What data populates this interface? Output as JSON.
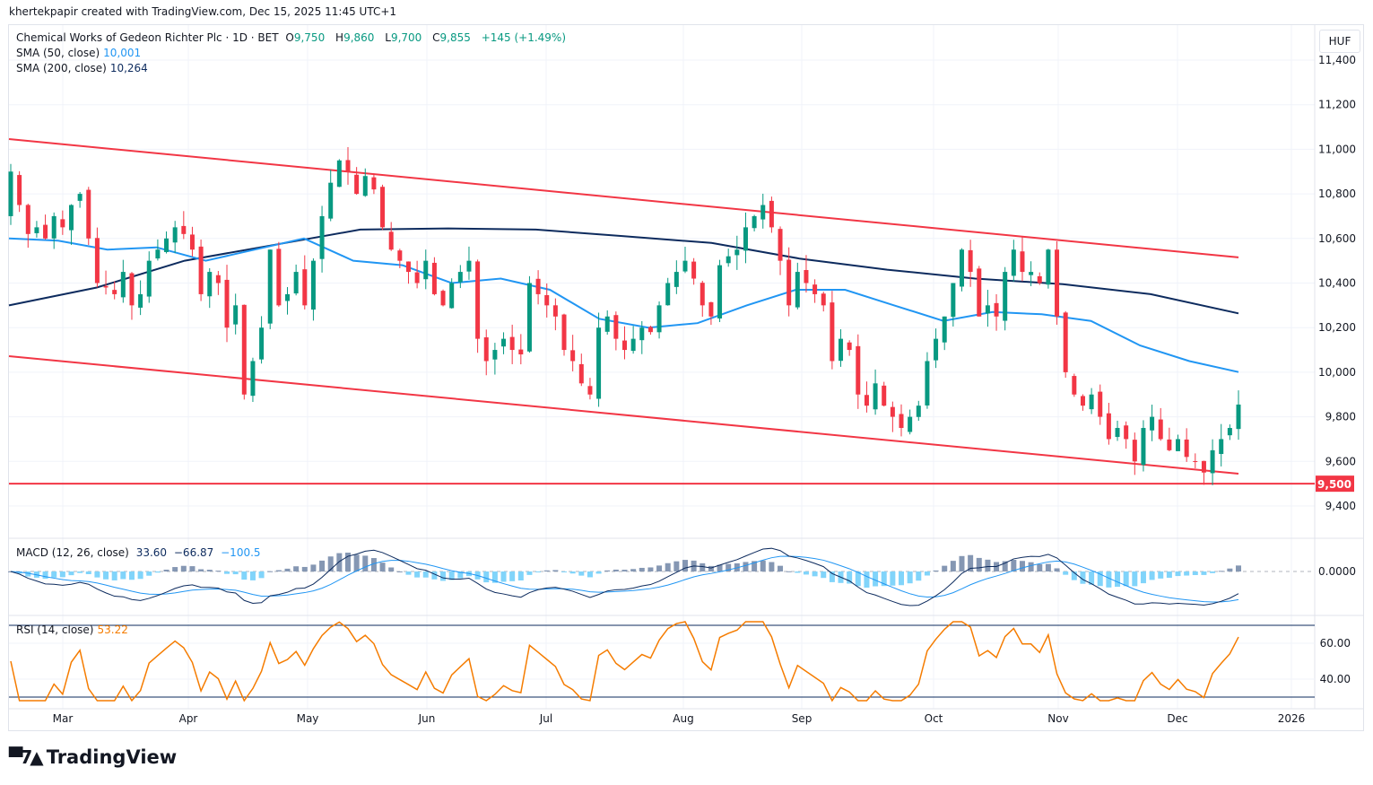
{
  "credit": "khertekpapir created with TradingView.com, Dec 15, 2025 11:45 UTC+1",
  "legend": {
    "symbol": "Chemical Works of Gedeon Richter Plc · 1D · BET",
    "o_label": "O",
    "o": "9,750",
    "h_label": "H",
    "h": "9,860",
    "l_label": "L",
    "l": "9,700",
    "c_label": "C",
    "c": "9,855",
    "change": "+145 (+1.49%)",
    "sma50_label": "SMA (50, close)",
    "sma50": "10,001",
    "sma200_label": "SMA (200, close)",
    "sma200": "10,264",
    "macd_label": "MACD (12, 26, close)",
    "macd_hist": "33.60",
    "macd_line": "−66.87",
    "macd_signal": "−100.5",
    "rsi_label": "RSI (14, close)",
    "rsi": "53.22"
  },
  "currency": "HUF",
  "logo": "TradingView",
  "colors": {
    "up": "#089981",
    "down": "#f23645",
    "sma50": "#2196f3",
    "sma200": "#0d2b5e",
    "channel": "#f23645",
    "rsi": "#f57c00"
  },
  "chart_data": {
    "type": "candlestick",
    "title": "Chemical Works of Gedeon Richter Plc · 1D · BET",
    "closes": [
      10900,
      10750,
      10620,
      10650,
      10600,
      10700,
      10650,
      10750,
      10800,
      10600,
      10400,
      10380,
      10350,
      10450,
      10300,
      10350,
      10500,
      10550,
      10600,
      10650,
      10620,
      10550,
      10350,
      10450,
      10400,
      10200,
      10300,
      9900,
      10050,
      10200,
      10550,
      10300,
      10350,
      10450,
      10300,
      10500,
      10700,
      10850,
      10950,
      10900,
      10800,
      10880,
      10820,
      10650,
      10550,
      10500,
      10450,
      10400,
      10500,
      10350,
      10300,
      10400,
      10450,
      10500,
      10150,
      10050,
      10100,
      10150,
      10100,
      10080,
      10400,
      10350,
      10300,
      10250,
      10100,
      10050,
      9950,
      9900,
      10200,
      10250,
      10150,
      10100,
      10150,
      10200,
      10180,
      10300,
      10400,
      10450,
      10500,
      10420,
      10300,
      10250,
      10480,
      10520,
      10550,
      10650,
      10700,
      10750,
      10650,
      10500,
      10300,
      10450,
      10400,
      10350,
      10300,
      10050,
      10150,
      10100,
      9900,
      9850,
      9950,
      9850,
      9800,
      9750,
      9800,
      9850,
      10050,
      10150,
      10250,
      10400,
      10550,
      10450,
      10250,
      10300,
      10250,
      10450,
      10550,
      10450,
      10450,
      10400,
      10550,
      10250,
      10000,
      9900,
      9850,
      9900,
      9800,
      9700,
      9750,
      9700,
      9600,
      9750,
      9800,
      9700,
      9650,
      9700,
      9620,
      9600,
      9550,
      9650,
      9700,
      9750,
      9855
    ],
    "sma50": [
      10600,
      10590,
      10550,
      10560,
      10500,
      10550,
      10600,
      10500,
      10480,
      10400,
      10420,
      10370,
      10240,
      10200,
      10220,
      10300,
      10370,
      10370,
      10300,
      10230,
      10270,
      10260,
      10230,
      10120,
      10050,
      10001
    ],
    "sma200": [
      10300,
      10380,
      10500,
      10570,
      10640,
      10645,
      10640,
      10610,
      10580,
      10510,
      10460,
      10420,
      10395,
      10350,
      10264
    ],
    "upper_channel": [
      11046,
      10515
    ],
    "lower_channel": [
      10072,
      9545
    ],
    "support_level": 9500,
    "support_label": "9,500",
    "ylim": [
      9300,
      11500
    ],
    "y_ticks": [
      "11,400",
      "11,200",
      "11,000",
      "10,800",
      "10,600",
      "10,400",
      "10,200",
      "10,000",
      "9,800",
      "9,600",
      "9,400"
    ],
    "y_tick_values": [
      11400,
      11200,
      11000,
      10800,
      10600,
      10400,
      10200,
      10000,
      9800,
      9600,
      9400
    ],
    "x_ticks": [
      "Mar",
      "Apr",
      "May",
      "Jun",
      "Jul",
      "Aug",
      "Sep",
      "Oct",
      "Nov",
      "Dec",
      "2026"
    ],
    "macd_zero_label": "0.0000",
    "rsi_ticks": [
      "60.00",
      "40.00"
    ],
    "rsi_bands": [
      70,
      30
    ]
  }
}
